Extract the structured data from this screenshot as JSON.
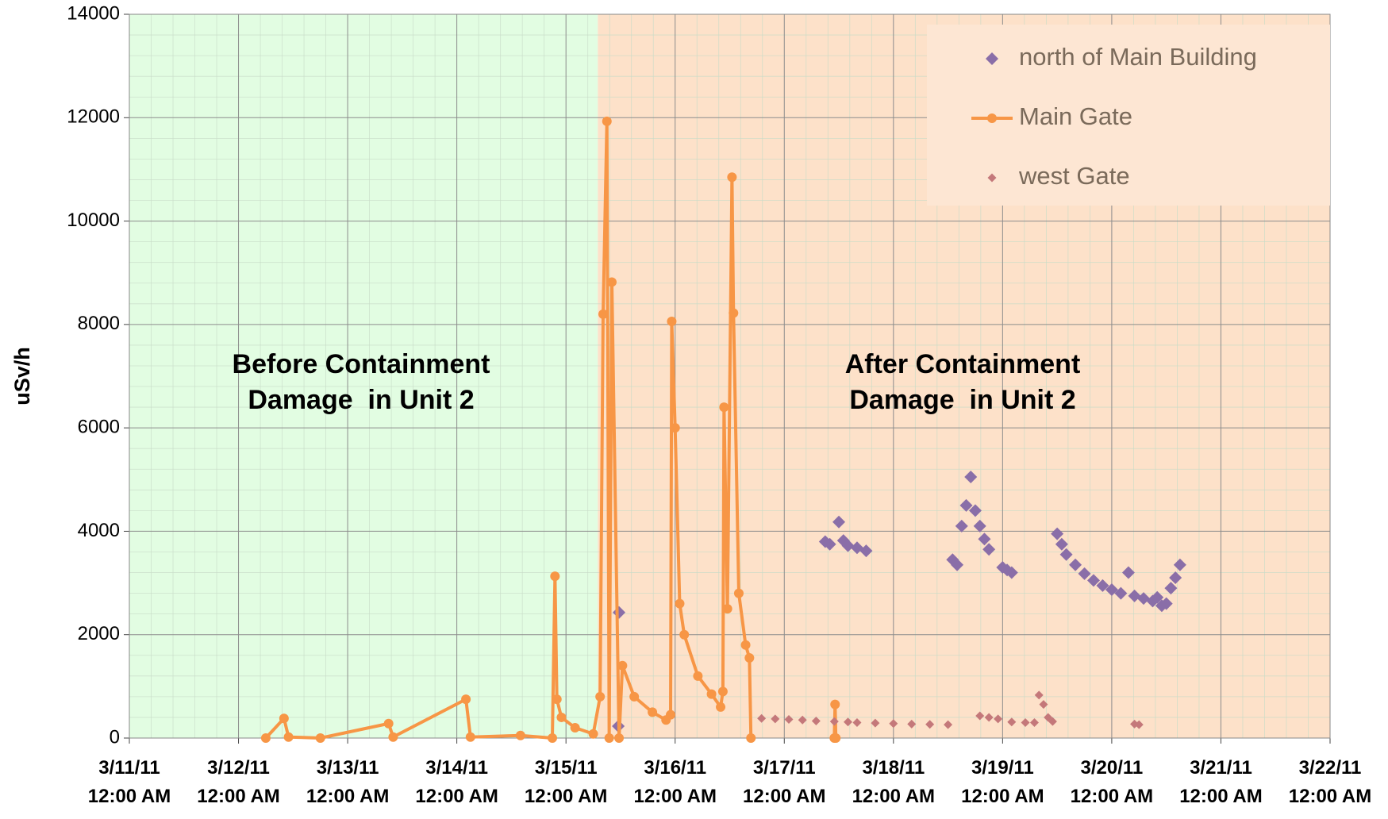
{
  "chart_data": {
    "type": "mixed",
    "y_label": "uSv/h",
    "xlim": [
      "2011-03-11T00:00",
      "2011-03-22T00:00"
    ],
    "xticks": [
      {
        "value": "2011-03-11T00:00",
        "label": "3/11/11 12:00 AM"
      },
      {
        "value": "2011-03-12T00:00",
        "label": "3/12/11 12:00 AM"
      },
      {
        "value": "2011-03-13T00:00",
        "label": "3/13/11 12:00 AM"
      },
      {
        "value": "2011-03-14T00:00",
        "label": "3/14/11 12:00 AM"
      },
      {
        "value": "2011-03-15T00:00",
        "label": "3/15/11 12:00 AM"
      },
      {
        "value": "2011-03-16T00:00",
        "label": "3/16/11 12:00 AM"
      },
      {
        "value": "2011-03-17T00:00",
        "label": "3/17/11 12:00 AM"
      },
      {
        "value": "2011-03-18T00:00",
        "label": "3/18/11 12:00 AM"
      },
      {
        "value": "2011-03-19T00:00",
        "label": "3/19/11 12:00 AM"
      },
      {
        "value": "2011-03-20T00:00",
        "label": "3/20/11 12:00 AM"
      },
      {
        "value": "2011-03-21T00:00",
        "label": "3/21/11 12:00 AM"
      },
      {
        "value": "2011-03-22T00:00",
        "label": "3/22/11 12:00 AM"
      }
    ],
    "ylim": [
      0,
      14000
    ],
    "yticks": [
      0,
      2000,
      4000,
      6000,
      8000,
      10000,
      12000,
      14000
    ],
    "grid": true,
    "legend": "upper right",
    "regions": [
      {
        "from": "2011-03-11T00:00",
        "to": "2011-03-15T07:00",
        "color": "#e2fde2",
        "annotation": [
          "Before Containment",
          "Damage  in Unit 2"
        ]
      },
      {
        "from": "2011-03-15T07:00",
        "to": "2011-03-22T00:00",
        "color": "#fde1c9",
        "annotation": [
          "After Containment",
          "Damage  in Unit 2"
        ]
      }
    ],
    "series": [
      {
        "name": "north of Main Building",
        "type": "scatter",
        "marker": "diamond",
        "color": "#8a6ea8",
        "x": [
          "2011-03-15T11:30",
          "2011-03-15T11:40",
          "2011-03-17T09:00",
          "2011-03-17T10:00",
          "2011-03-17T12:00",
          "2011-03-17T13:00",
          "2011-03-17T14:00",
          "2011-03-17T16:00",
          "2011-03-17T18:00",
          "2011-03-18T13:00",
          "2011-03-18T14:00",
          "2011-03-18T15:00",
          "2011-03-18T16:00",
          "2011-03-18T17:00",
          "2011-03-18T18:00",
          "2011-03-18T19:00",
          "2011-03-18T20:00",
          "2011-03-18T21:00",
          "2011-03-19T00:00",
          "2011-03-19T01:00",
          "2011-03-19T02:00",
          "2011-03-19T12:00",
          "2011-03-19T13:00",
          "2011-03-19T14:00",
          "2011-03-19T16:00",
          "2011-03-19T18:00",
          "2011-03-19T20:00",
          "2011-03-19T22:00",
          "2011-03-20T00:00",
          "2011-03-20T02:00",
          "2011-03-20T03:40",
          "2011-03-20T05:00",
          "2011-03-20T07:00",
          "2011-03-20T09:00",
          "2011-03-20T10:00",
          "2011-03-20T11:00",
          "2011-03-20T12:00",
          "2011-03-20T13:00",
          "2011-03-20T14:00",
          "2011-03-20T15:00"
        ],
        "values": [
          230,
          2430,
          3800,
          3750,
          4180,
          3820,
          3720,
          3680,
          3620,
          3450,
          3350,
          4100,
          4500,
          5050,
          4400,
          4100,
          3850,
          3650,
          3300,
          3250,
          3200,
          3950,
          3750,
          3550,
          3350,
          3180,
          3050,
          2950,
          2870,
          2800,
          3200,
          2750,
          2700,
          2650,
          2720,
          2560,
          2600,
          2900,
          3100,
          3350
        ]
      },
      {
        "name": "Main Gate",
        "type": "line",
        "marker": "circle",
        "color": "#f79646",
        "x": [
          "2011-03-12T06:00",
          "2011-03-12T10:00",
          "2011-03-12T11:00",
          "2011-03-12T18:00",
          "2011-03-13T09:00",
          "2011-03-13T10:00",
          "2011-03-14T02:00",
          "2011-03-14T03:00",
          "2011-03-14T14:00",
          "2011-03-14T21:00",
          "2011-03-14T21:35",
          "2011-03-14T22:00",
          "2011-03-14T23:00",
          "2011-03-15T02:00",
          "2011-03-15T06:00",
          "2011-03-15T07:30",
          "2011-03-15T08:10",
          "2011-03-15T09:00",
          "2011-03-15T09:30",
          "2011-03-15T10:05",
          "2011-03-15T11:40",
          "2011-03-15T12:25",
          "2011-03-15T15:00",
          "2011-03-15T19:00",
          "2011-03-15T22:00",
          "2011-03-15T23:00",
          "2011-03-15T23:15",
          "2011-03-16T00:00",
          "2011-03-16T01:00",
          "2011-03-16T02:00",
          "2011-03-16T05:00",
          "2011-03-16T08:00",
          "2011-03-16T10:00",
          "2011-03-16T10:30",
          "2011-03-16T10:45",
          "2011-03-16T11:30",
          "2011-03-16T12:30",
          "2011-03-16T12:50",
          "2011-03-16T14:00",
          "2011-03-16T15:30",
          "2011-03-16T16:20",
          "2011-03-16T16:40",
          "2011-03-17T00:00",
          "2011-03-17T11:00",
          "2011-03-17T11:10",
          "2011-03-17T11:20"
        ],
        "values": [
          0,
          380,
          20,
          0,
          280,
          20,
          750,
          20,
          50,
          0,
          3130,
          750,
          400,
          200,
          80,
          800,
          8200,
          11930,
          0,
          8820,
          0,
          1400,
          800,
          500,
          350,
          450,
          8060,
          6000,
          2600,
          2000,
          1200,
          850,
          600,
          900,
          6400,
          2500,
          10850,
          8220,
          2800,
          1800,
          1550,
          0,
          null,
          0,
          650,
          0
        ]
      },
      {
        "name": "west Gate",
        "type": "scatter",
        "marker": "small-diamond",
        "color": "#c4787a",
        "x": [
          "2011-03-16T19:00",
          "2011-03-16T22:00",
          "2011-03-17T01:00",
          "2011-03-17T04:00",
          "2011-03-17T07:00",
          "2011-03-17T11:00",
          "2011-03-17T14:00",
          "2011-03-17T16:00",
          "2011-03-17T20:00",
          "2011-03-18T00:00",
          "2011-03-18T04:00",
          "2011-03-18T08:00",
          "2011-03-18T12:00",
          "2011-03-18T19:00",
          "2011-03-18T21:00",
          "2011-03-18T23:00",
          "2011-03-19T02:00",
          "2011-03-19T05:00",
          "2011-03-19T07:00",
          "2011-03-19T08:00",
          "2011-03-19T09:00",
          "2011-03-19T10:00",
          "2011-03-19T11:00",
          "2011-03-20T05:00",
          "2011-03-20T06:00"
        ],
        "values": [
          380,
          370,
          360,
          350,
          330,
          320,
          310,
          300,
          290,
          280,
          270,
          265,
          260,
          430,
          400,
          370,
          310,
          300,
          300,
          830,
          650,
          400,
          320,
          270,
          260
        ]
      }
    ]
  }
}
